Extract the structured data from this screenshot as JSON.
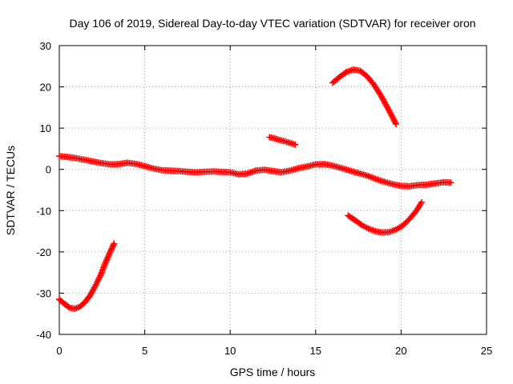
{
  "chart_data": {
    "type": "scatter",
    "title": "Day 106 of 2019, Sidereal Day-to-day VTEC variation (SDTVAR) for receiver oron",
    "xlabel": "GPS time / hours",
    "ylabel": "SDTVAR / TECUs",
    "xlim": [
      0,
      25
    ],
    "ylim": [
      -40,
      30
    ],
    "xticks": [
      0,
      5,
      10,
      15,
      20,
      25
    ],
    "yticks": [
      -40,
      -30,
      -20,
      -10,
      0,
      10,
      20,
      30
    ],
    "grid": true,
    "marker": "+",
    "color": "#ff0000",
    "series": [
      {
        "name": "main-track",
        "points": [
          [
            0.0,
            3.2
          ],
          [
            0.5,
            3.0
          ],
          [
            1.0,
            2.7
          ],
          [
            1.5,
            2.3
          ],
          [
            2.0,
            1.9
          ],
          [
            2.5,
            1.5
          ],
          [
            3.0,
            1.2
          ],
          [
            3.5,
            1.3
          ],
          [
            4.0,
            1.6
          ],
          [
            4.5,
            1.3
          ],
          [
            5.0,
            0.8
          ],
          [
            5.5,
            0.2
          ],
          [
            6.0,
            -0.2
          ],
          [
            6.5,
            -0.3
          ],
          [
            7.0,
            -0.4
          ],
          [
            7.5,
            -0.6
          ],
          [
            8.0,
            -0.7
          ],
          [
            8.5,
            -0.6
          ],
          [
            9.0,
            -0.5
          ],
          [
            9.5,
            -0.6
          ],
          [
            10.0,
            -0.7
          ],
          [
            10.5,
            -1.2
          ],
          [
            11.0,
            -1.0
          ],
          [
            11.5,
            -0.3
          ],
          [
            12.0,
            -0.1
          ],
          [
            12.5,
            -0.4
          ],
          [
            13.0,
            -0.7
          ],
          [
            13.5,
            -0.3
          ],
          [
            14.0,
            0.3
          ],
          [
            14.5,
            0.7
          ],
          [
            15.0,
            1.2
          ],
          [
            15.5,
            1.3
          ],
          [
            16.0,
            0.9
          ],
          [
            16.5,
            0.3
          ],
          [
            17.0,
            -0.3
          ],
          [
            17.5,
            -0.9
          ],
          [
            18.0,
            -1.5
          ],
          [
            18.5,
            -2.3
          ],
          [
            19.0,
            -3.0
          ],
          [
            19.5,
            -3.6
          ],
          [
            20.0,
            -4.0
          ],
          [
            20.5,
            -4.1
          ],
          [
            21.0,
            -3.8
          ],
          [
            21.5,
            -3.7
          ],
          [
            22.0,
            -3.4
          ],
          [
            22.5,
            -3.1
          ],
          [
            22.9,
            -3.2
          ]
        ]
      },
      {
        "name": "arc-early",
        "points": [
          [
            0.0,
            -31.5
          ],
          [
            0.3,
            -32.6
          ],
          [
            0.6,
            -33.5
          ],
          [
            0.9,
            -33.8
          ],
          [
            1.2,
            -33.3
          ],
          [
            1.5,
            -32.2
          ],
          [
            1.8,
            -30.6
          ],
          [
            2.1,
            -28.3
          ],
          [
            2.4,
            -25.8
          ],
          [
            2.7,
            -22.6
          ],
          [
            3.0,
            -19.8
          ],
          [
            3.2,
            -18.0
          ]
        ]
      },
      {
        "name": "segment-midday",
        "points": [
          [
            12.3,
            7.8
          ],
          [
            12.6,
            7.5
          ],
          [
            12.9,
            7.1
          ],
          [
            13.2,
            6.8
          ],
          [
            13.5,
            6.4
          ],
          [
            13.8,
            6.0
          ]
        ]
      },
      {
        "name": "arc-upper",
        "points": [
          [
            16.0,
            21.0
          ],
          [
            16.4,
            22.4
          ],
          [
            16.8,
            23.6
          ],
          [
            17.2,
            24.2
          ],
          [
            17.6,
            23.9
          ],
          [
            18.0,
            22.6
          ],
          [
            18.4,
            20.6
          ],
          [
            18.8,
            18.0
          ],
          [
            19.2,
            15.0
          ],
          [
            19.5,
            12.6
          ],
          [
            19.7,
            11.0
          ]
        ]
      },
      {
        "name": "arc-lower",
        "points": [
          [
            16.9,
            -11.2
          ],
          [
            17.3,
            -12.3
          ],
          [
            17.7,
            -13.5
          ],
          [
            18.1,
            -14.4
          ],
          [
            18.5,
            -15.0
          ],
          [
            18.9,
            -15.3
          ],
          [
            19.3,
            -15.2
          ],
          [
            19.7,
            -14.6
          ],
          [
            20.1,
            -13.6
          ],
          [
            20.5,
            -12.0
          ],
          [
            20.9,
            -10.0
          ],
          [
            21.2,
            -8.0
          ]
        ]
      }
    ]
  }
}
